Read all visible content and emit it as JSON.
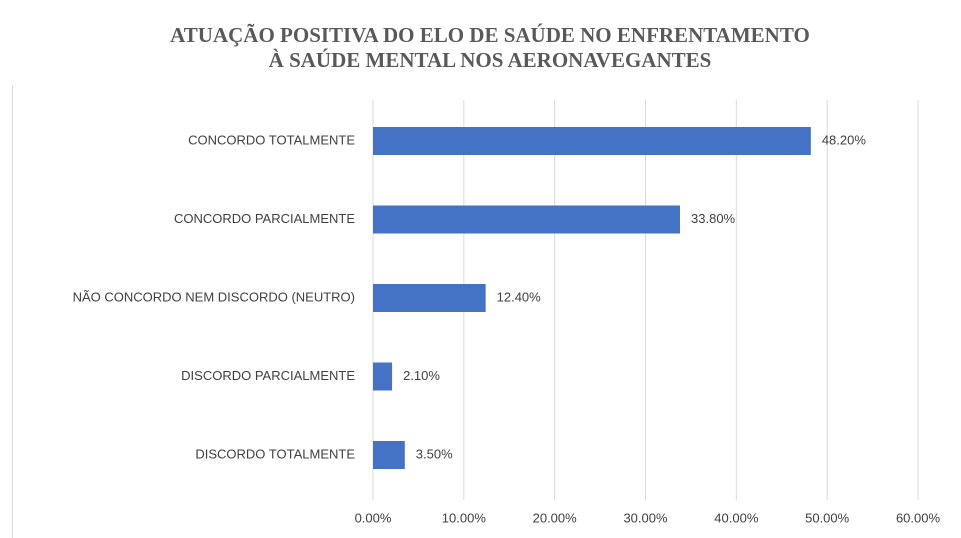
{
  "chart_data": {
    "type": "barh",
    "title": [
      "ATUAÇÃO  POSITIVA DO ELO DE SAÚDE NO ENFRENTAMENTO",
      "À SAÚDE MENTAL NOS AERONAVEGANTES"
    ],
    "categories": [
      "CONCORDO TOTALMENTE",
      "CONCORDO PARCIALMENTE",
      "NÃO CONCORDO NEM DISCORDO (NEUTRO)",
      "DISCORDO PARCIALMENTE",
      "DISCORDO TOTALMENTE"
    ],
    "values": [
      48.2,
      33.8,
      12.4,
      2.1,
      3.5
    ],
    "value_labels": [
      "48.20%",
      "33.80%",
      "12.40%",
      "2.10%",
      "3.50%"
    ],
    "color": "#4472c4",
    "xlim": [
      0,
      60
    ],
    "xticks": [
      {
        "value": 0,
        "label": "0.00%"
      },
      {
        "value": 10,
        "label": "10.00%"
      },
      {
        "value": 20,
        "label": "20.00%"
      },
      {
        "value": 30,
        "label": "30.00%"
      },
      {
        "value": 40,
        "label": "40.00%"
      },
      {
        "value": 50,
        "label": "50.00%"
      },
      {
        "value": 60,
        "label": "60.00%"
      }
    ],
    "grid": true
  }
}
